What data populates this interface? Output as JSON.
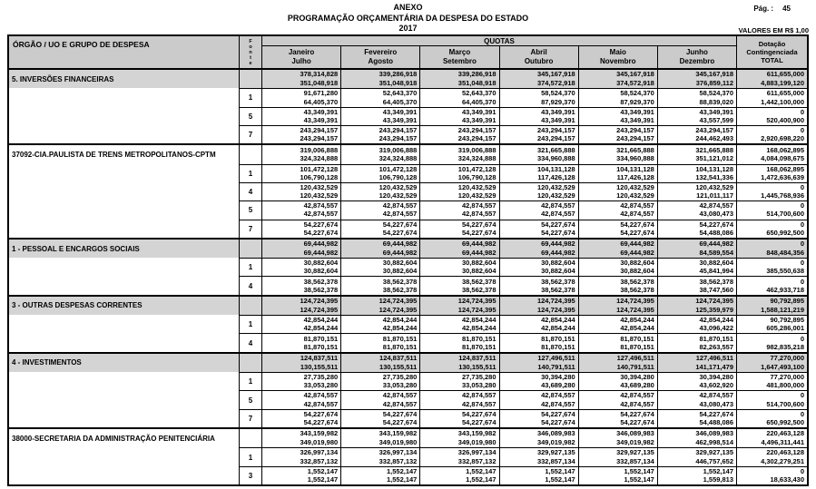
{
  "page": {
    "annex_title": "ANEXO",
    "page_label": "Pág. :",
    "page_number": "45",
    "title": "PROGRAMAÇÃO ORÇAMENTÁRIA DA DESPESA DO ESTADO",
    "year": "2017",
    "values_note": "VALORES EM R$ 1,00"
  },
  "colors": {
    "header_gray": "#cbcbcb",
    "shaded_row_gray": "#d4d4d4",
    "border": "#000000"
  },
  "table": {
    "col_organ": "ÓRGÃO / UO  E GRUPO DE DESPESA",
    "fonte_letters": [
      "F",
      "o",
      "n",
      "t",
      "e"
    ],
    "col_quotas": "QUOTAS",
    "col_total": [
      "Dotação",
      "Contingenciada",
      "TOTAL"
    ],
    "months": [
      [
        "Janeiro",
        "Julho"
      ],
      [
        "Fevereiro",
        "Agosto"
      ],
      [
        "Março",
        "Setembro"
      ],
      [
        "Abril",
        "Outubro"
      ],
      [
        "Maio",
        "Novembro"
      ],
      [
        "Junho",
        "Dezembro"
      ]
    ],
    "sections": [
      {
        "label": "5. INVERSÕES FINANCEIRAS",
        "shaded": true,
        "rows": [
          {
            "fonte": "",
            "line1": [
              "378,314,828",
              "339,286,918",
              "339,286,918",
              "345,167,918",
              "345,167,918",
              "345,167,918",
              "611,655,000"
            ],
            "line2": [
              "351,048,918",
              "351,048,918",
              "351,048,918",
              "374,572,918",
              "374,572,918",
              "376,859,112",
              "4,883,199,120"
            ]
          },
          {
            "fonte": "1",
            "line1": [
              "91,671,280",
              "52,643,370",
              "52,643,370",
              "58,524,370",
              "58,524,370",
              "58,524,370",
              "611,655,000"
            ],
            "line2": [
              "64,405,370",
              "64,405,370",
              "64,405,370",
              "87,929,370",
              "87,929,370",
              "88,839,020",
              "1,442,100,000"
            ]
          },
          {
            "fonte": "5",
            "line1": [
              "43,349,391",
              "43,349,391",
              "43,349,391",
              "43,349,391",
              "43,349,391",
              "43,349,391",
              "0"
            ],
            "line2": [
              "43,349,391",
              "43,349,391",
              "43,349,391",
              "43,349,391",
              "43,349,391",
              "43,557,599",
              "520,400,900"
            ]
          },
          {
            "fonte": "7",
            "line1": [
              "243,294,157",
              "243,294,157",
              "243,294,157",
              "243,294,157",
              "243,294,157",
              "243,294,157",
              "0"
            ],
            "line2": [
              "243,294,157",
              "243,294,157",
              "243,294,157",
              "243,294,157",
              "243,294,157",
              "244,462,493",
              "2,920,698,220"
            ]
          }
        ]
      },
      {
        "label": "37092-CIA.PAULISTA DE TRENS METROPOLITANOS-CPTM",
        "shaded": false,
        "rows": [
          {
            "fonte": "",
            "line1": [
              "319,006,888",
              "319,006,888",
              "319,006,888",
              "321,665,888",
              "321,665,888",
              "321,665,888",
              "168,062,895"
            ],
            "line2": [
              "324,324,888",
              "324,324,888",
              "324,324,888",
              "334,960,888",
              "334,960,888",
              "351,121,012",
              "4,084,098,675"
            ]
          },
          {
            "fonte": "1",
            "line1": [
              "101,472,128",
              "101,472,128",
              "101,472,128",
              "104,131,128",
              "104,131,128",
              "104,131,128",
              "168,062,895"
            ],
            "line2": [
              "106,790,128",
              "106,790,128",
              "106,790,128",
              "117,426,128",
              "117,426,128",
              "132,541,336",
              "1,472,636,639"
            ]
          },
          {
            "fonte": "4",
            "line1": [
              "120,432,529",
              "120,432,529",
              "120,432,529",
              "120,432,529",
              "120,432,529",
              "120,432,529",
              "0"
            ],
            "line2": [
              "120,432,529",
              "120,432,529",
              "120,432,529",
              "120,432,529",
              "120,432,529",
              "121,011,117",
              "1,445,768,936"
            ]
          },
          {
            "fonte": "5",
            "line1": [
              "42,874,557",
              "42,874,557",
              "42,874,557",
              "42,874,557",
              "42,874,557",
              "42,874,557",
              "0"
            ],
            "line2": [
              "42,874,557",
              "42,874,557",
              "42,874,557",
              "42,874,557",
              "42,874,557",
              "43,080,473",
              "514,700,600"
            ]
          },
          {
            "fonte": "7",
            "line1": [
              "54,227,674",
              "54,227,674",
              "54,227,674",
              "54,227,674",
              "54,227,674",
              "54,227,674",
              "0"
            ],
            "line2": [
              "54,227,674",
              "54,227,674",
              "54,227,674",
              "54,227,674",
              "54,227,674",
              "54,488,086",
              "650,992,500"
            ]
          }
        ]
      },
      {
        "label": "1 - PESSOAL E ENCARGOS SOCIAIS",
        "shaded": true,
        "rows": [
          {
            "fonte": "",
            "line1": [
              "69,444,982",
              "69,444,982",
              "69,444,982",
              "69,444,982",
              "69,444,982",
              "69,444,982",
              "0"
            ],
            "line2": [
              "69,444,982",
              "69,444,982",
              "69,444,982",
              "69,444,982",
              "69,444,982",
              "84,589,554",
              "848,484,356"
            ]
          },
          {
            "fonte": "1",
            "line1": [
              "30,882,604",
              "30,882,604",
              "30,882,604",
              "30,882,604",
              "30,882,604",
              "30,882,604",
              "0"
            ],
            "line2": [
              "30,882,604",
              "30,882,604",
              "30,882,604",
              "30,882,604",
              "30,882,604",
              "45,841,994",
              "385,550,638"
            ]
          },
          {
            "fonte": "4",
            "line1": [
              "38,562,378",
              "38,562,378",
              "38,562,378",
              "38,562,378",
              "38,562,378",
              "38,562,378",
              "0"
            ],
            "line2": [
              "38,562,378",
              "38,562,378",
              "38,562,378",
              "38,562,378",
              "38,562,378",
              "38,747,560",
              "462,933,718"
            ]
          }
        ]
      },
      {
        "label": "3 - OUTRAS DESPESAS CORRENTES",
        "shaded": true,
        "rows": [
          {
            "fonte": "",
            "line1": [
              "124,724,395",
              "124,724,395",
              "124,724,395",
              "124,724,395",
              "124,724,395",
              "124,724,395",
              "90,792,895"
            ],
            "line2": [
              "124,724,395",
              "124,724,395",
              "124,724,395",
              "124,724,395",
              "124,724,395",
              "125,359,979",
              "1,588,121,219"
            ]
          },
          {
            "fonte": "1",
            "line1": [
              "42,854,244",
              "42,854,244",
              "42,854,244",
              "42,854,244",
              "42,854,244",
              "42,854,244",
              "90,792,895"
            ],
            "line2": [
              "42,854,244",
              "42,854,244",
              "42,854,244",
              "42,854,244",
              "42,854,244",
              "43,096,422",
              "605,286,001"
            ]
          },
          {
            "fonte": "4",
            "line1": [
              "81,870,151",
              "81,870,151",
              "81,870,151",
              "81,870,151",
              "81,870,151",
              "81,870,151",
              "0"
            ],
            "line2": [
              "81,870,151",
              "81,870,151",
              "81,870,151",
              "81,870,151",
              "81,870,151",
              "82,263,557",
              "982,835,218"
            ]
          }
        ]
      },
      {
        "label": "4 - INVESTIMENTOS",
        "shaded": true,
        "rows": [
          {
            "fonte": "",
            "line1": [
              "124,837,511",
              "124,837,511",
              "124,837,511",
              "127,496,511",
              "127,496,511",
              "127,496,511",
              "77,270,000"
            ],
            "line2": [
              "130,155,511",
              "130,155,511",
              "130,155,511",
              "140,791,511",
              "140,791,511",
              "141,171,479",
              "1,647,493,100"
            ]
          },
          {
            "fonte": "1",
            "line1": [
              "27,735,280",
              "27,735,280",
              "27,735,280",
              "30,394,280",
              "30,394,280",
              "30,394,280",
              "77,270,000"
            ],
            "line2": [
              "33,053,280",
              "33,053,280",
              "33,053,280",
              "43,689,280",
              "43,689,280",
              "43,602,920",
              "481,800,000"
            ]
          },
          {
            "fonte": "5",
            "line1": [
              "42,874,557",
              "42,874,557",
              "42,874,557",
              "42,874,557",
              "42,874,557",
              "42,874,557",
              "0"
            ],
            "line2": [
              "42,874,557",
              "42,874,557",
              "42,874,557",
              "42,874,557",
              "42,874,557",
              "43,080,473",
              "514,700,600"
            ]
          },
          {
            "fonte": "7",
            "line1": [
              "54,227,674",
              "54,227,674",
              "54,227,674",
              "54,227,674",
              "54,227,674",
              "54,227,674",
              "0"
            ],
            "line2": [
              "54,227,674",
              "54,227,674",
              "54,227,674",
              "54,227,674",
              "54,227,674",
              "54,488,086",
              "650,992,500"
            ]
          }
        ]
      },
      {
        "label": "38000-SECRETARIA DA ADMINISTRAÇÃO PENITENCIÁRIA",
        "shaded": false,
        "rows": [
          {
            "fonte": "",
            "line1": [
              "343,159,982",
              "343,159,982",
              "343,159,982",
              "346,089,983",
              "346,089,983",
              "346,089,983",
              "220,463,128"
            ],
            "line2": [
              "349,019,980",
              "349,019,980",
              "349,019,980",
              "349,019,982",
              "349,019,982",
              "462,998,514",
              "4,496,311,441"
            ]
          },
          {
            "fonte": "1",
            "line1": [
              "326,997,134",
              "326,997,134",
              "326,997,134",
              "329,927,135",
              "329,927,135",
              "329,927,135",
              "220,463,128"
            ],
            "line2": [
              "332,857,132",
              "332,857,132",
              "332,857,132",
              "332,857,134",
              "332,857,134",
              "446,757,652",
              "4,302,279,251"
            ]
          },
          {
            "fonte": "3",
            "line1": [
              "1,552,147",
              "1,552,147",
              "1,552,147",
              "1,552,147",
              "1,552,147",
              "1,552,147",
              "0"
            ],
            "line2": [
              "1,552,147",
              "1,552,147",
              "1,552,147",
              "1,552,147",
              "1,552,147",
              "1,559,813",
              "18,633,430"
            ]
          }
        ]
      }
    ]
  }
}
